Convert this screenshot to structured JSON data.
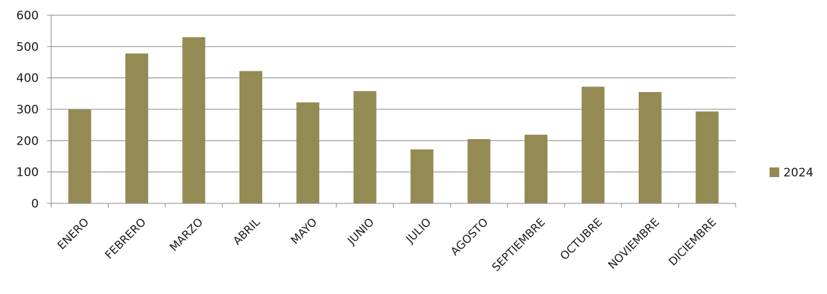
{
  "chart_data": {
    "type": "bar",
    "categories": [
      "ENERO",
      "FEBRERO",
      "MARZO",
      "ABRIL",
      "MAYO",
      "JUNIO",
      "JULIO",
      "AGOSTO",
      "SEPTIEMBRE",
      "OCTUBRE",
      "NOVIEMBRE",
      "DICIEMBRE"
    ],
    "series": [
      {
        "name": "2024",
        "color": "#948A54",
        "values": [
          300,
          478,
          530,
          422,
          322,
          358,
          172,
          205,
          219,
          372,
          355,
          293
        ]
      }
    ],
    "ylim": [
      0,
      600
    ],
    "yticks": [
      0,
      100,
      200,
      300,
      400,
      500,
      600
    ],
    "grid": true,
    "legend_position": "right",
    "title": "",
    "xlabel": "",
    "ylabel": ""
  }
}
